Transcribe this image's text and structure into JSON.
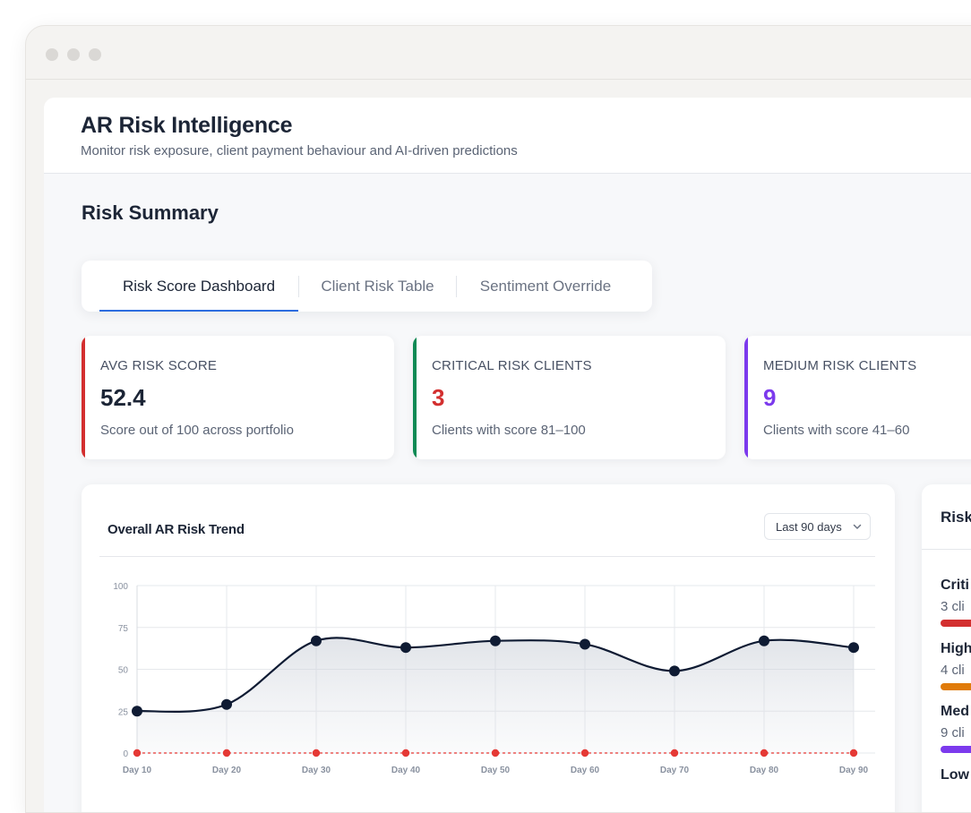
{
  "window": {
    "controls": [
      "close",
      "minimize",
      "maximize"
    ]
  },
  "header": {
    "title": "AR Risk Intelligence",
    "subtitle": "Monitor risk exposure, client payment behaviour and AI-driven predictions"
  },
  "section": {
    "title": "Risk Summary"
  },
  "tabs": [
    {
      "label": "Risk Score Dashboard",
      "active": true
    },
    {
      "label": "Client Risk Table",
      "active": false
    },
    {
      "label": "Sentiment Override",
      "active": false
    }
  ],
  "stats": [
    {
      "label": "AVG RISK SCORE",
      "value": "52.4",
      "desc": "Score out of 100 across portfolio",
      "accent": "#d32f2f",
      "value_color": "#1c2536"
    },
    {
      "label": "CRITICAL RISK CLIENTS",
      "value": "3",
      "desc": "Clients with score 81–100",
      "accent": "#0e8a55",
      "value_color": "#d32f2f"
    },
    {
      "label": "MEDIUM RISK CLIENTS",
      "value": "9",
      "desc": "Clients with score 41–60",
      "accent": "#7c3aed",
      "value_color": "#7c3aed"
    }
  ],
  "chart_card": {
    "title": "Overall AR Risk Trend",
    "range_label": "Last 90 days",
    "chevron_icon": "chevron-down-icon"
  },
  "chart_data": {
    "type": "line",
    "title": "Overall AR Risk Trend",
    "categories": [
      "Day 10",
      "Day 20",
      "Day 30",
      "Day 40",
      "Day 50",
      "Day 60",
      "Day 70",
      "Day 80",
      "Day 90"
    ],
    "y_ticks": [
      "0",
      "25",
      "50",
      "75",
      "100"
    ],
    "ylim": [
      0,
      100
    ],
    "grid": true,
    "series": [
      {
        "values": [
          25,
          29,
          67,
          63,
          67,
          65,
          49,
          67,
          63
        ],
        "color": "#0f1b33",
        "fill": true
      },
      {
        "values": [
          0,
          0,
          0,
          0,
          0,
          0,
          0,
          0,
          0
        ],
        "color": "#e53935",
        "dashed": true
      }
    ]
  },
  "side_card": {
    "title": "Risk",
    "items": [
      {
        "name": "Criti",
        "count": "3 cli",
        "color": "#d32f2f",
        "fill": 0.6
      },
      {
        "name": "High",
        "count": "4 cli",
        "color": "#e07b0a",
        "fill": 0.6
      },
      {
        "name": "Med",
        "count": "9 cli",
        "color": "#7c3aed",
        "fill": 0.6
      },
      {
        "name": "Low",
        "count": "",
        "color": "#2e7d32",
        "fill": 0.6
      }
    ]
  }
}
